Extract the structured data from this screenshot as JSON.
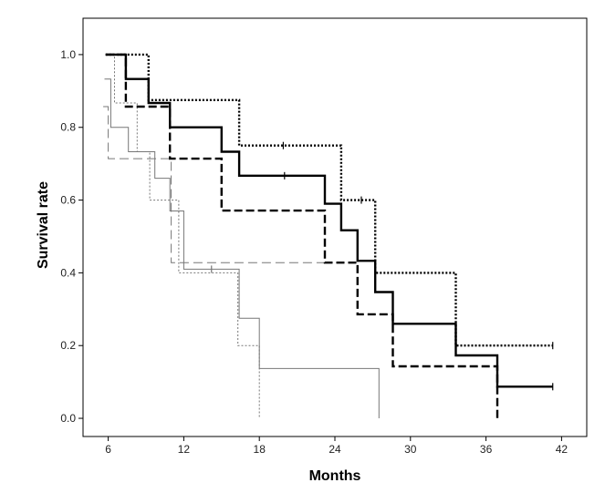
{
  "chart_data": {
    "type": "line",
    "step": true,
    "xlabel": "Months",
    "ylabel": "Survival rate",
    "xlim": [
      4,
      44
    ],
    "ylim": [
      -0.05,
      1.1
    ],
    "xticks": [
      6,
      12,
      18,
      24,
      30,
      36,
      42
    ],
    "yticks": [
      "0.0",
      "0.2",
      "0.4",
      "0.6",
      "0.8",
      "1.0"
    ],
    "grid": false,
    "series": [
      {
        "style": "solid-thick",
        "color": "#000000",
        "points": [
          [
            5.8,
            1.0
          ],
          [
            7.4,
            1.0
          ],
          [
            7.4,
            0.933
          ],
          [
            9.2,
            0.933
          ],
          [
            9.2,
            0.867
          ],
          [
            10.9,
            0.867
          ],
          [
            10.9,
            0.8
          ],
          [
            15.0,
            0.8
          ],
          [
            15.0,
            0.733
          ],
          [
            16.4,
            0.733
          ],
          [
            16.4,
            0.667
          ],
          [
            23.2,
            0.667
          ],
          [
            23.2,
            0.59
          ],
          [
            24.5,
            0.59
          ],
          [
            24.5,
            0.517
          ],
          [
            25.8,
            0.517
          ],
          [
            25.8,
            0.433
          ],
          [
            27.2,
            0.433
          ],
          [
            27.2,
            0.347
          ],
          [
            28.6,
            0.347
          ],
          [
            28.6,
            0.26
          ],
          [
            33.6,
            0.26
          ],
          [
            33.6,
            0.173
          ],
          [
            36.9,
            0.173
          ],
          [
            36.9,
            0.087
          ],
          [
            41.3,
            0.087
          ]
        ],
        "censored": [
          [
            20.0,
            0.667
          ],
          [
            41.3,
            0.087
          ]
        ]
      },
      {
        "style": "dashed-thick",
        "color": "#000000",
        "points": [
          [
            5.8,
            1.0
          ],
          [
            7.4,
            1.0
          ],
          [
            7.4,
            0.857
          ],
          [
            10.9,
            0.857
          ],
          [
            10.9,
            0.714
          ],
          [
            15.0,
            0.714
          ],
          [
            15.0,
            0.571
          ],
          [
            23.2,
            0.571
          ],
          [
            23.2,
            0.428
          ],
          [
            25.8,
            0.428
          ],
          [
            25.8,
            0.286
          ],
          [
            28.6,
            0.286
          ],
          [
            28.6,
            0.143
          ],
          [
            36.9,
            0.143
          ],
          [
            36.9,
            0.0
          ]
        ],
        "censored": []
      },
      {
        "style": "dotted-thick",
        "color": "#000000",
        "points": [
          [
            5.8,
            1.0
          ],
          [
            9.2,
            1.0
          ],
          [
            9.2,
            0.875
          ],
          [
            16.4,
            0.875
          ],
          [
            16.4,
            0.75
          ],
          [
            24.5,
            0.75
          ],
          [
            24.5,
            0.6
          ],
          [
            27.2,
            0.6
          ],
          [
            27.2,
            0.4
          ],
          [
            33.6,
            0.4
          ],
          [
            33.6,
            0.2
          ],
          [
            41.3,
            0.2
          ]
        ],
        "censored": [
          [
            19.9,
            0.75
          ],
          [
            26.1,
            0.6
          ],
          [
            41.3,
            0.2
          ]
        ]
      },
      {
        "style": "solid-thin",
        "color": "#777777",
        "points": [
          [
            5.7,
            0.933
          ],
          [
            6.2,
            0.933
          ],
          [
            6.2,
            0.8
          ],
          [
            7.6,
            0.8
          ],
          [
            7.6,
            0.733
          ],
          [
            9.7,
            0.733
          ],
          [
            9.7,
            0.66
          ],
          [
            10.9,
            0.66
          ],
          [
            10.9,
            0.57
          ],
          [
            12.0,
            0.57
          ],
          [
            12.0,
            0.41
          ],
          [
            16.4,
            0.41
          ],
          [
            16.4,
            0.275
          ],
          [
            18.0,
            0.275
          ],
          [
            18.0,
            0.137
          ],
          [
            27.5,
            0.137
          ],
          [
            27.5,
            0.0
          ]
        ],
        "censored": [
          [
            14.2,
            0.41
          ]
        ]
      },
      {
        "style": "dashed-thin",
        "color": "#777777",
        "points": [
          [
            5.6,
            0.857
          ],
          [
            6.0,
            0.857
          ],
          [
            6.0,
            0.714
          ],
          [
            11.0,
            0.714
          ],
          [
            11.0,
            0.428
          ],
          [
            23.2,
            0.428
          ]
        ],
        "censored": []
      },
      {
        "style": "dotted-thin",
        "color": "#777777",
        "points": [
          [
            5.8,
            1.0
          ],
          [
            6.5,
            1.0
          ],
          [
            6.5,
            0.867
          ],
          [
            8.3,
            0.867
          ],
          [
            8.3,
            0.733
          ],
          [
            9.3,
            0.733
          ],
          [
            9.3,
            0.6
          ],
          [
            11.6,
            0.6
          ],
          [
            11.6,
            0.4
          ],
          [
            16.3,
            0.4
          ],
          [
            16.3,
            0.2
          ],
          [
            18.0,
            0.2
          ],
          [
            18.0,
            0.0
          ]
        ],
        "censored": []
      }
    ]
  }
}
